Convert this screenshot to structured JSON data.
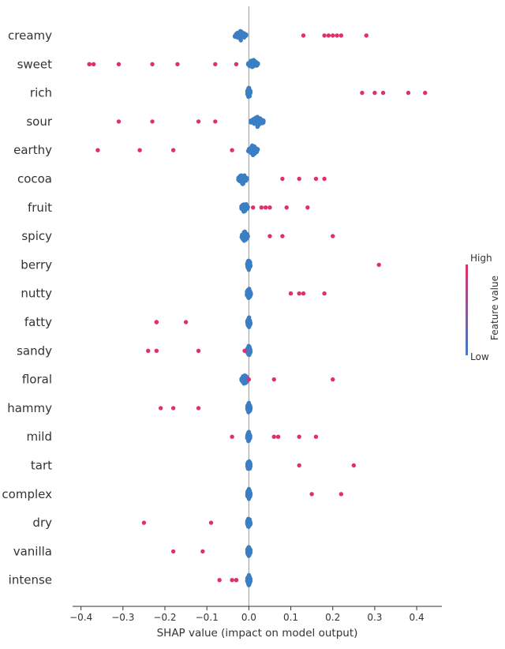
{
  "chart_data": {
    "type": "scatter",
    "subtype": "shap-beeswarm",
    "title": "",
    "xlabel": "SHAP value (impact on model output)",
    "xlim": [
      -0.42,
      0.46
    ],
    "xticks": [
      -0.4,
      -0.3,
      -0.2,
      -0.1,
      0.0,
      0.1,
      0.2,
      0.3,
      0.4
    ],
    "xtick_labels": [
      "−0.4",
      "−0.3",
      "−0.2",
      "−0.1",
      "0.0",
      "0.1",
      "0.2",
      "0.3",
      "0.4"
    ],
    "zero_line": true,
    "grid": false,
    "features": [
      {
        "name": "creamy",
        "high": [
          0.13,
          0.18,
          0.19,
          0.2,
          0.21,
          0.22,
          0.28
        ],
        "low_center": -0.02,
        "low_spread": 0.014
      },
      {
        "name": "sweet",
        "high": [
          -0.38,
          -0.38,
          -0.37,
          -0.31,
          -0.23,
          -0.17,
          -0.08,
          -0.03
        ],
        "low_center": 0.01,
        "low_spread": 0.012
      },
      {
        "name": "rich",
        "high": [
          0.27,
          0.3,
          0.32,
          0.38,
          0.42
        ],
        "low_center": 0.0,
        "low_spread": 0.004
      },
      {
        "name": "sour",
        "high": [
          -0.31,
          -0.23,
          -0.12,
          -0.08
        ],
        "low_center": 0.02,
        "low_spread": 0.016
      },
      {
        "name": "earthy",
        "high": [
          -0.36,
          -0.26,
          -0.18,
          -0.04
        ],
        "low_center": 0.01,
        "low_spread": 0.012
      },
      {
        "name": "cocoa",
        "high": [
          0.08,
          0.12,
          0.16,
          0.18
        ],
        "low_center": -0.015,
        "low_spread": 0.011
      },
      {
        "name": "fruit",
        "high": [
          0.01,
          0.03,
          0.04,
          0.05,
          0.09,
          0.14
        ],
        "low_center": -0.01,
        "low_spread": 0.008
      },
      {
        "name": "spicy",
        "high": [
          0.05,
          0.08,
          0.2
        ],
        "low_center": -0.01,
        "low_spread": 0.008
      },
      {
        "name": "berry",
        "high": [
          0.31
        ],
        "low_center": 0.0,
        "low_spread": 0.004
      },
      {
        "name": "nutty",
        "high": [
          0.1,
          0.12,
          0.13,
          0.18
        ],
        "low_center": 0.0,
        "low_spread": 0.005
      },
      {
        "name": "fatty",
        "high": [
          -0.22,
          -0.22,
          -0.15
        ],
        "low_center": 0.0,
        "low_spread": 0.004
      },
      {
        "name": "sandy",
        "high": [
          -0.24,
          -0.22,
          -0.12,
          -0.01
        ],
        "low_center": 0.0,
        "low_spread": 0.004
      },
      {
        "name": "floral",
        "high": [
          0.0,
          0.06,
          0.2
        ],
        "low_center": -0.01,
        "low_spread": 0.008
      },
      {
        "name": "hammy",
        "high": [
          -0.21,
          -0.18,
          -0.12
        ],
        "low_center": 0.0,
        "low_spread": 0.004
      },
      {
        "name": "mild",
        "high": [
          -0.04,
          0.06,
          0.07,
          0.12,
          0.16
        ],
        "low_center": 0.0,
        "low_spread": 0.004
      },
      {
        "name": "tart",
        "high": [
          0.12,
          0.25
        ],
        "low_center": 0.0,
        "low_spread": 0.004
      },
      {
        "name": "complex",
        "high": [
          0.15,
          0.22
        ],
        "low_center": 0.0,
        "low_spread": 0.004
      },
      {
        "name": "dry",
        "high": [
          -0.25,
          -0.09
        ],
        "low_center": 0.0,
        "low_spread": 0.004
      },
      {
        "name": "vanilla",
        "high": [
          -0.18,
          -0.11
        ],
        "low_center": 0.0,
        "low_spread": 0.004
      },
      {
        "name": "intense",
        "high": [
          -0.07,
          -0.04,
          -0.03,
          -0.03
        ],
        "low_center": 0.0,
        "low_spread": 0.004
      }
    ],
    "colorbar": {
      "label": "Feature value",
      "high_label": "High",
      "low_label": "Low",
      "high_color": "#e0306b",
      "low_color": "#3a7ec4"
    },
    "colors": {
      "high_point": "#e0306b",
      "low_point": "#3a7ec4",
      "zero_line": "#999999",
      "axis": "#333333"
    }
  }
}
